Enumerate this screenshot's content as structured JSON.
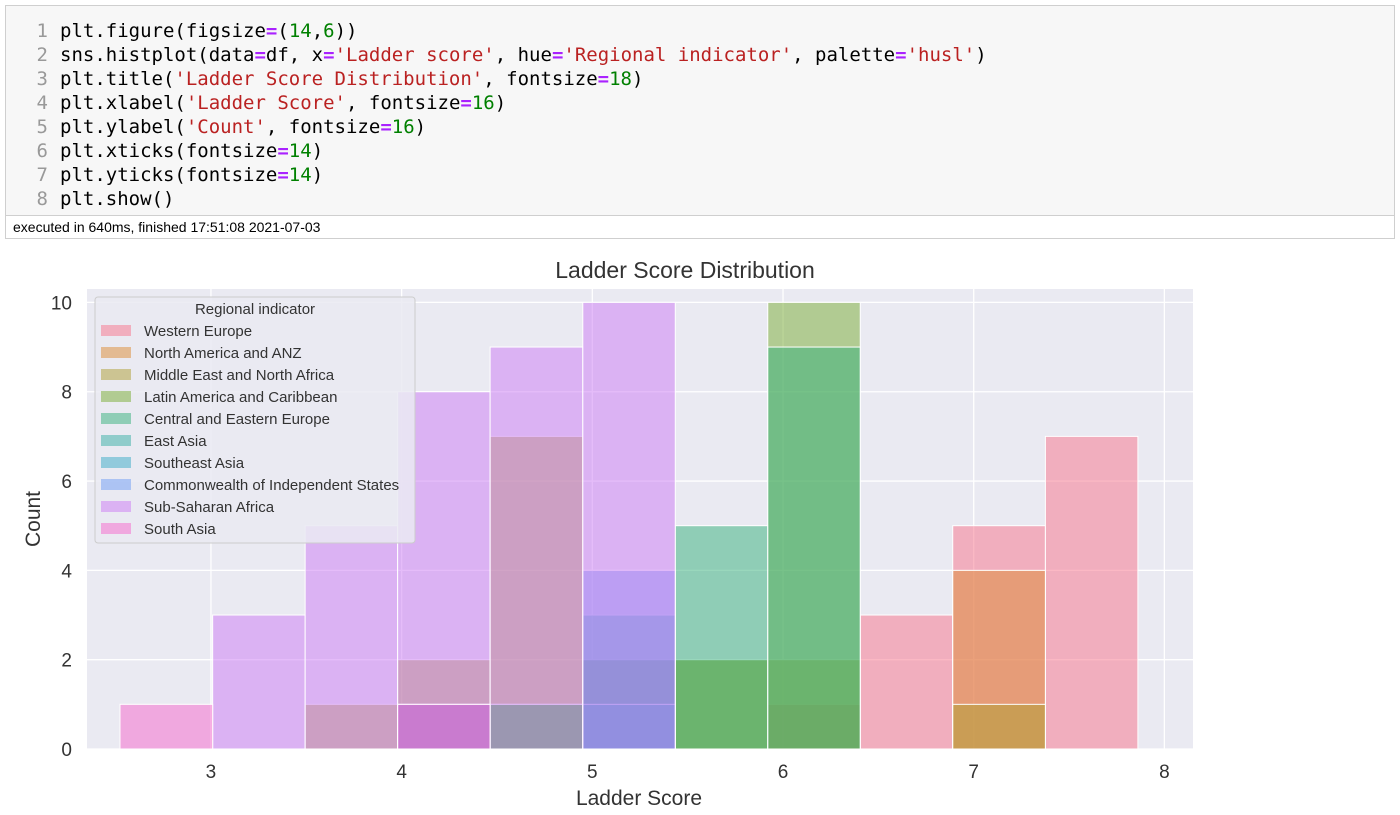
{
  "code_cell": {
    "lines": [
      {
        "num": "1",
        "tokens": [
          {
            "t": "plt.figure(figsize",
            "c": "p"
          },
          {
            "t": "=",
            "c": "eq"
          },
          {
            "t": "(",
            "c": "p"
          },
          {
            "t": "14",
            "c": "num"
          },
          {
            "t": ",",
            "c": "p"
          },
          {
            "t": "6",
            "c": "num"
          },
          {
            "t": "))",
            "c": "p"
          }
        ]
      },
      {
        "num": "2",
        "tokens": [
          {
            "t": "sns.histplot(data",
            "c": "p"
          },
          {
            "t": "=",
            "c": "eq"
          },
          {
            "t": "df, x",
            "c": "p"
          },
          {
            "t": "=",
            "c": "eq"
          },
          {
            "t": "'Ladder score'",
            "c": "str"
          },
          {
            "t": ", hue",
            "c": "p"
          },
          {
            "t": "=",
            "c": "eq"
          },
          {
            "t": "'Regional indicator'",
            "c": "str"
          },
          {
            "t": ", palette",
            "c": "p"
          },
          {
            "t": "=",
            "c": "eq"
          },
          {
            "t": "'husl'",
            "c": "str"
          },
          {
            "t": ")",
            "c": "p"
          }
        ]
      },
      {
        "num": "3",
        "tokens": [
          {
            "t": "plt.title(",
            "c": "p"
          },
          {
            "t": "'Ladder Score Distribution'",
            "c": "str"
          },
          {
            "t": ", fontsize",
            "c": "p"
          },
          {
            "t": "=",
            "c": "eq"
          },
          {
            "t": "18",
            "c": "num"
          },
          {
            "t": ")",
            "c": "p"
          }
        ]
      },
      {
        "num": "4",
        "tokens": [
          {
            "t": "plt.xlabel(",
            "c": "p"
          },
          {
            "t": "'Ladder Score'",
            "c": "str"
          },
          {
            "t": ", fontsize",
            "c": "p"
          },
          {
            "t": "=",
            "c": "eq"
          },
          {
            "t": "16",
            "c": "num"
          },
          {
            "t": ")",
            "c": "p"
          }
        ]
      },
      {
        "num": "5",
        "tokens": [
          {
            "t": "plt.ylabel(",
            "c": "p"
          },
          {
            "t": "'Count'",
            "c": "str"
          },
          {
            "t": ", fontsize",
            "c": "p"
          },
          {
            "t": "=",
            "c": "eq"
          },
          {
            "t": "16",
            "c": "num"
          },
          {
            "t": ")",
            "c": "p"
          }
        ]
      },
      {
        "num": "6",
        "tokens": [
          {
            "t": "plt.xticks(fontsize",
            "c": "p"
          },
          {
            "t": "=",
            "c": "eq"
          },
          {
            "t": "14",
            "c": "num"
          },
          {
            "t": ")",
            "c": "p"
          }
        ]
      },
      {
        "num": "7",
        "tokens": [
          {
            "t": "plt.yticks(fontsize",
            "c": "p"
          },
          {
            "t": "=",
            "c": "eq"
          },
          {
            "t": "14",
            "c": "num"
          },
          {
            "t": ")",
            "c": "p"
          }
        ]
      },
      {
        "num": "8",
        "tokens": [
          {
            "t": "plt.show()",
            "c": "p"
          }
        ]
      }
    ],
    "status": "executed in 640ms, finished 17:51:08 2021-07-03"
  },
  "colors": {
    "eq": "#aa22ff",
    "str": "#ba2121",
    "num": "#008000",
    "plain": "#000000",
    "plot_bg": "#eaeaf2",
    "grid": "#ffffff"
  },
  "chart_data": {
    "type": "bar",
    "title": "Ladder Score Distribution",
    "xlabel": "Ladder Score",
    "ylabel": "Count",
    "xlim": [
      2.35,
      8.15
    ],
    "ylim": [
      0,
      10.3
    ],
    "xticks": [
      3,
      4,
      5,
      6,
      7,
      8
    ],
    "yticks": [
      0,
      2,
      4,
      6,
      8,
      10
    ],
    "grid": true,
    "legend_title": "Regional indicator",
    "legend_placement": "top-left",
    "bin_edges": [
      2.523,
      3.009,
      3.494,
      3.979,
      4.464,
      4.95,
      5.435,
      5.92,
      6.405,
      6.89,
      7.376,
      7.861
    ],
    "series": [
      {
        "name": "Western Europe",
        "color": "#f77189",
        "counts": [
          0,
          0,
          0,
          0,
          0,
          0,
          0,
          1,
          3,
          5,
          7
        ]
      },
      {
        "name": "North America and ANZ",
        "color": "#dc8932",
        "counts": [
          0,
          0,
          0,
          0,
          0,
          0,
          0,
          0,
          0,
          4,
          0
        ]
      },
      {
        "name": "Middle East and North Africa",
        "color": "#ae9d31",
        "counts": [
          0,
          0,
          1,
          2,
          7,
          2,
          2,
          2,
          0,
          1,
          0
        ]
      },
      {
        "name": "Latin America and Caribbean",
        "color": "#77ab31",
        "counts": [
          0,
          0,
          0,
          1,
          1,
          2,
          2,
          10,
          0,
          0,
          0
        ]
      },
      {
        "name": "Central and Eastern Europe",
        "color": "#33b07a",
        "counts": [
          0,
          0,
          0,
          1,
          1,
          2,
          5,
          9,
          0,
          0,
          0
        ]
      },
      {
        "name": "East Asia",
        "color": "#36ada4",
        "counts": [
          0,
          0,
          0,
          0,
          0,
          3,
          0,
          0,
          0,
          0,
          0
        ]
      },
      {
        "name": "Southeast Asia",
        "color": "#38a9c5",
        "counts": [
          0,
          0,
          0,
          0,
          0,
          1,
          0,
          0,
          0,
          0,
          0
        ]
      },
      {
        "name": "Commonwealth of Independent States",
        "color": "#6e9bf4",
        "counts": [
          0,
          0,
          0,
          1,
          0,
          4,
          0,
          0,
          0,
          0,
          0
        ]
      },
      {
        "name": "Sub-Saharan Africa",
        "color": "#cc7af4",
        "counts": [
          0,
          3,
          5,
          8,
          9,
          10,
          0,
          0,
          0,
          0,
          0
        ]
      },
      {
        "name": "South Asia",
        "color": "#f565cc",
        "counts": [
          1,
          0,
          0,
          1,
          0,
          0,
          0,
          0,
          0,
          0,
          0
        ]
      }
    ]
  }
}
